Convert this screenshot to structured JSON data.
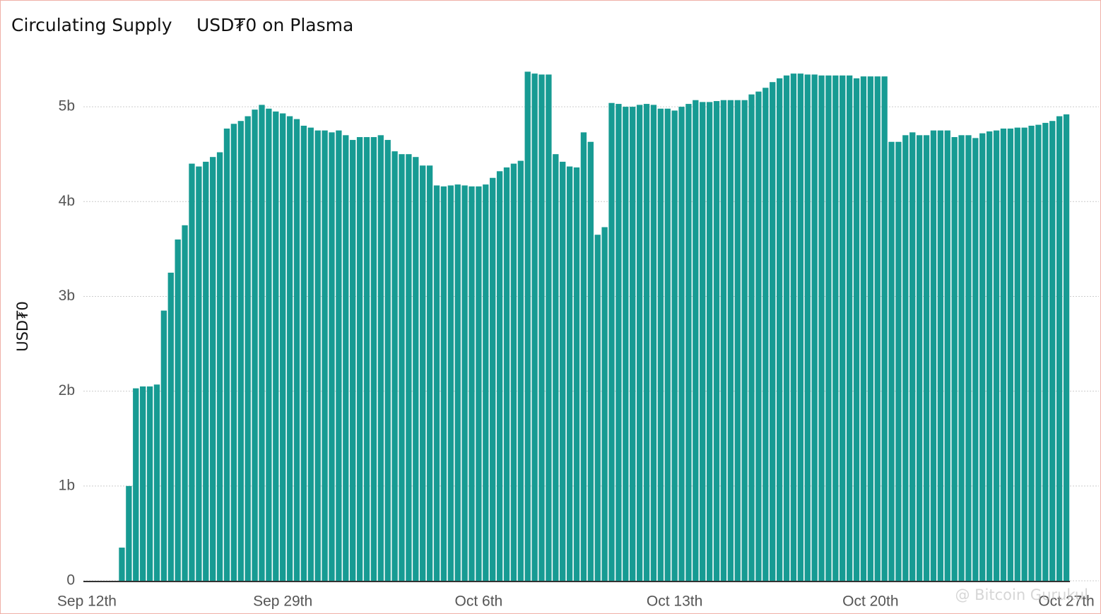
{
  "chart_data": {
    "type": "bar",
    "title": "Circulating Supply",
    "subtitle": "USD₮0 on Plasma",
    "y_label": "USD₮0",
    "watermark": "@ Bitcoin Gurukul",
    "color": "#179b93",
    "grid": true,
    "ylim": [
      0,
      5.5
    ],
    "yticks": [
      0,
      {
        "value": 1,
        "label": "1b"
      },
      {
        "value": 2,
        "label": "2b"
      },
      {
        "value": 3,
        "label": "3b"
      },
      {
        "value": 4,
        "label": "4b"
      },
      {
        "value": 5,
        "label": "5b"
      }
    ],
    "categories": [
      "Sep 12th",
      null,
      null,
      null,
      null,
      null,
      null,
      null,
      null,
      null,
      null,
      null,
      null,
      null,
      null,
      null,
      null,
      null,
      null,
      null,
      null,
      null,
      null,
      null,
      null,
      null,
      null,
      null,
      "Sep 29th",
      null,
      null,
      null,
      null,
      null,
      null,
      null,
      null,
      null,
      null,
      null,
      null,
      null,
      null,
      null,
      null,
      null,
      null,
      null,
      null,
      null,
      null,
      null,
      null,
      null,
      null,
      null,
      "Oct 6th",
      null,
      null,
      null,
      null,
      null,
      null,
      null,
      null,
      null,
      null,
      null,
      null,
      null,
      null,
      null,
      null,
      null,
      null,
      null,
      null,
      null,
      null,
      null,
      null,
      null,
      null,
      null,
      "Oct 13th",
      null,
      null,
      null,
      null,
      null,
      null,
      null,
      null,
      null,
      null,
      null,
      null,
      null,
      null,
      null,
      null,
      null,
      null,
      null,
      null,
      null,
      null,
      null,
      null,
      null,
      null,
      null,
      "Oct 20th",
      null,
      null,
      null,
      null,
      null,
      null,
      null,
      null,
      null,
      null,
      null,
      null,
      null,
      null,
      null,
      null,
      null,
      null,
      null,
      null,
      null,
      null,
      null,
      null,
      null,
      null,
      null,
      "Oct 27th"
    ],
    "values": [
      0,
      0,
      0,
      0,
      0,
      0.35,
      1.0,
      2.03,
      2.05,
      2.05,
      2.07,
      2.85,
      3.25,
      3.6,
      3.75,
      4.4,
      4.37,
      4.42,
      4.47,
      4.52,
      4.77,
      4.82,
      4.85,
      4.9,
      4.97,
      5.02,
      4.98,
      4.95,
      4.93,
      4.9,
      4.87,
      4.8,
      4.78,
      4.75,
      4.75,
      4.73,
      4.75,
      4.7,
      4.65,
      4.68,
      4.68,
      4.68,
      4.7,
      4.65,
      4.53,
      4.5,
      4.5,
      4.47,
      4.38,
      4.38,
      4.17,
      4.16,
      4.17,
      4.18,
      4.17,
      4.16,
      4.16,
      4.18,
      4.25,
      4.32,
      4.36,
      4.4,
      4.43,
      5.37,
      5.35,
      5.34,
      5.34,
      4.5,
      4.42,
      4.37,
      4.36,
      4.73,
      4.63,
      3.65,
      3.73,
      5.04,
      5.03,
      5.0,
      5.0,
      5.02,
      5.03,
      5.02,
      4.98,
      4.98,
      4.96,
      5.0,
      5.03,
      5.07,
      5.05,
      5.05,
      5.06,
      5.07,
      5.07,
      5.07,
      5.07,
      5.13,
      5.16,
      5.2,
      5.26,
      5.3,
      5.33,
      5.35,
      5.35,
      5.34,
      5.34,
      5.33,
      5.33,
      5.33,
      5.33,
      5.33,
      5.3,
      5.32,
      5.32,
      5.32,
      5.32,
      4.63,
      4.63,
      4.7,
      4.73,
      4.7,
      4.7,
      4.75,
      4.75,
      4.75,
      4.68,
      4.7,
      4.7,
      4.67,
      4.72,
      4.74,
      4.75,
      4.77,
      4.77,
      4.78,
      4.78,
      4.8,
      4.81,
      4.83,
      4.85,
      4.9,
      4.92
    ]
  }
}
